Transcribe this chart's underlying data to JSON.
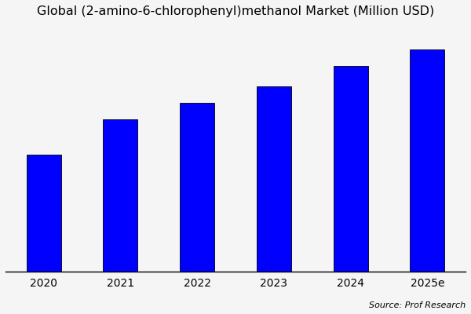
{
  "title": "Global (2-amino-6-chlorophenyl)methanol Market (Million USD)",
  "categories": [
    "2020",
    "2021",
    "2022",
    "2023",
    "2024",
    "2025e"
  ],
  "values": [
    5.0,
    6.5,
    7.2,
    7.9,
    8.8,
    9.5
  ],
  "bar_color": "#0000FF",
  "bar_edgecolor": "#000000",
  "background_color": "#F5F5F5",
  "title_fontsize": 11.5,
  "tick_fontsize": 10,
  "source_text": "Source: Prof Research",
  "ylim": [
    0,
    10.5
  ],
  "bar_width": 0.45
}
